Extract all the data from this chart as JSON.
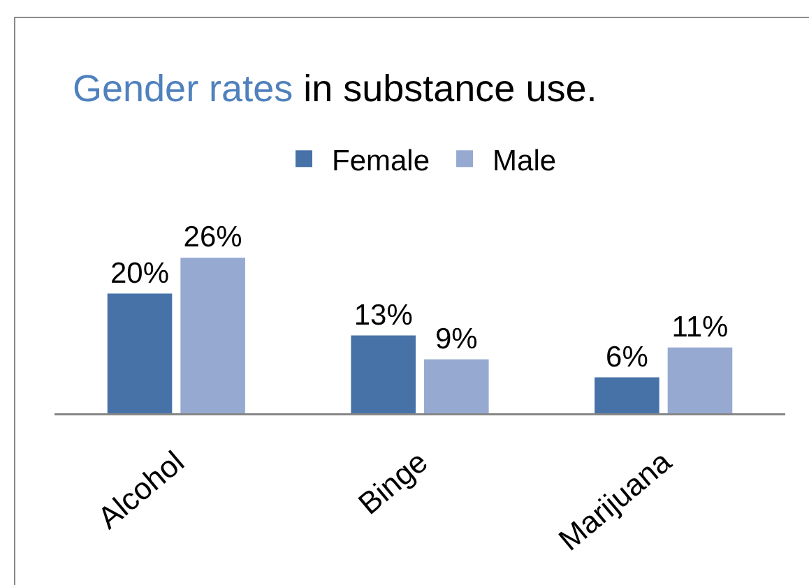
{
  "chart_data": {
    "type": "bar",
    "title": "Gender rates in substance use.",
    "categories": [
      "Alcohol",
      "Binge",
      "Marijuana"
    ],
    "series": [
      {
        "name": "Female",
        "color": "#4672a8",
        "values": [
          20,
          13,
          6
        ],
        "value_labels": [
          "20%",
          "13%",
          "6%"
        ]
      },
      {
        "name": "Male",
        "color": "#95a9d1",
        "values": [
          26,
          9,
          11
        ],
        "value_labels": [
          "26%",
          "9%",
          "11%"
        ]
      }
    ],
    "legend": "top"
  }
}
